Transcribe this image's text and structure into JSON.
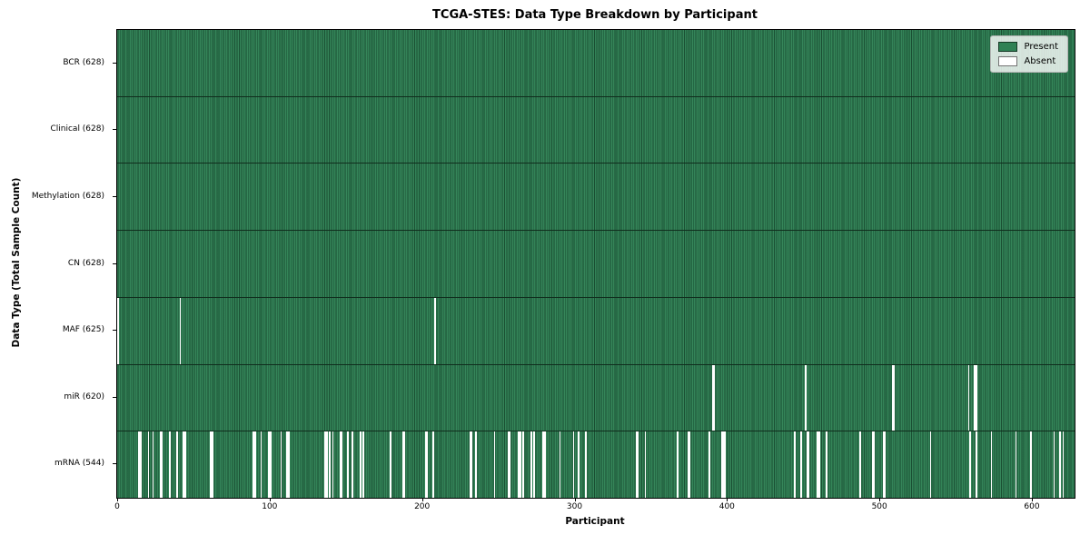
{
  "chart_data": {
    "type": "heatmap",
    "title": "TCGA-STES: Data Type Breakdown by Participant",
    "xlabel": "Participant",
    "ylabel": "Data Type (Total Sample Count)",
    "n_participants": 628,
    "x_ticks": [
      0,
      100,
      200,
      300,
      400,
      500,
      600
    ],
    "legend": {
      "present": "Present",
      "absent": "Absent",
      "position": "upper right"
    },
    "colors": {
      "present": "#2f8154",
      "absent": "#ffffff"
    },
    "grid": false,
    "rows": [
      {
        "label": "BCR",
        "count": 628,
        "tick_label": "BCR (628)",
        "absent": []
      },
      {
        "label": "Clinical",
        "count": 628,
        "tick_label": "Clinical (628)",
        "absent": []
      },
      {
        "label": "Methylation",
        "count": 628,
        "tick_label": "Methylation (628)",
        "absent": []
      },
      {
        "label": "CN",
        "count": 628,
        "tick_label": "CN (628)",
        "absent": []
      },
      {
        "label": "MAF",
        "count": 625,
        "tick_label": "MAF (625)",
        "absent": [
          0,
          41,
          208
        ]
      },
      {
        "label": "miR",
        "count": 620,
        "tick_label": "miR (620)",
        "absent": [
          390,
          391,
          451,
          508,
          509,
          558,
          562,
          563
        ]
      },
      {
        "label": "mRNA",
        "count": 544,
        "tick_label": "mRNA (544)",
        "absent": [
          14,
          15,
          20,
          23,
          28,
          29,
          34,
          39,
          43,
          44,
          61,
          62,
          89,
          90,
          94,
          99,
          100,
          107,
          111,
          112,
          136,
          137,
          139,
          141,
          146,
          147,
          151,
          154,
          159,
          161,
          179,
          187,
          188,
          202,
          203,
          207,
          231,
          232,
          235,
          247,
          256,
          257,
          263,
          264,
          266,
          271,
          273,
          279,
          280,
          290,
          299,
          302,
          307,
          340,
          341,
          346,
          367,
          374,
          375,
          388,
          396,
          397,
          398,
          444,
          448,
          452,
          453,
          459,
          460,
          465,
          487,
          495,
          496,
          502,
          503,
          533,
          559,
          563,
          573,
          589,
          599,
          614,
          618,
          620
        ]
      }
    ]
  }
}
